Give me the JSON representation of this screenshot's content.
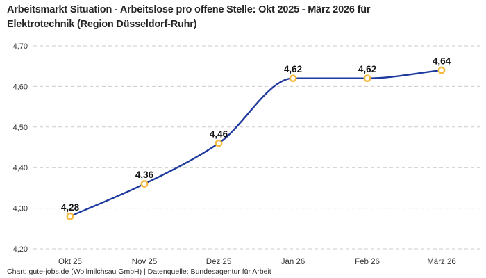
{
  "title": "Arbeitsmarkt Situation - Arbeitslose pro offene Stelle: Okt 2025 - März 2026 für\nElektrotechnik (Region Düsseldorf-Ruhr)",
  "footer": "Chart: gute-jobs.de (Wollmilchsau GmbH) | Datenquelle: Bundesagentur für Arbeit",
  "chart_data": {
    "type": "line",
    "title": "Arbeitsmarkt Situation - Arbeitslose pro offene Stelle: Okt 2025 - März 2026 für Elektrotechnik (Region Düsseldorf-Ruhr)",
    "categories": [
      "Okt 25",
      "Nov 25",
      "Dez 25",
      "Jan 26",
      "Feb 26",
      "März 26"
    ],
    "values": [
      4.28,
      4.36,
      4.46,
      4.62,
      4.62,
      4.64
    ],
    "value_labels": [
      "4,28",
      "4,36",
      "4,46",
      "4,62",
      "4,62",
      "4,64"
    ],
    "y_ticks": [
      {
        "value": 4.7,
        "label": "4,70"
      },
      {
        "value": 4.6,
        "label": "4,60"
      },
      {
        "value": 4.5,
        "label": "4,50"
      },
      {
        "value": 4.4,
        "label": "4,40"
      },
      {
        "value": 4.3,
        "label": "4,30"
      },
      {
        "value": 4.2,
        "label": "4,20"
      }
    ],
    "ylim": [
      4.2,
      4.7
    ],
    "xlabel": "",
    "ylabel": "",
    "grid": "horizontal-dashed",
    "legend": "none",
    "curve": "monotone",
    "line_color": "#1e3a9e",
    "marker_stroke_color": "#f6b93b",
    "marker_fill_color": "#ffffff",
    "grid_color": "#cbcbcb",
    "tick_color": "#333333",
    "value_label_color": "#141414"
  }
}
